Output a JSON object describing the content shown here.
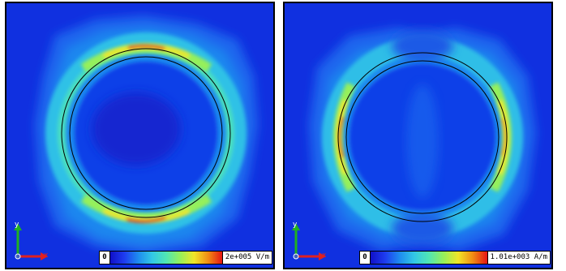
{
  "panels": [
    {
      "id": "e-field",
      "colorbar": {
        "min_label": "0",
        "max_label": "2e+005 V/m"
      },
      "axes": {
        "x_label": "x",
        "y_label": "y"
      }
    },
    {
      "id": "h-field",
      "colorbar": {
        "min_label": "0",
        "max_label": "1.01e+003 A/m"
      },
      "axes": {
        "x_label": "x",
        "y_label": "y"
      }
    }
  ],
  "colors": {
    "background_field": "#1030e0",
    "colormap": [
      "#1010c8",
      "#1e3cf0",
      "#1e8cf0",
      "#32c8e6",
      "#50e6b4",
      "#96f05a",
      "#f0e628",
      "#f08c14",
      "#e61414"
    ],
    "axis_x": "#e02020",
    "axis_y": "#20b020"
  }
}
